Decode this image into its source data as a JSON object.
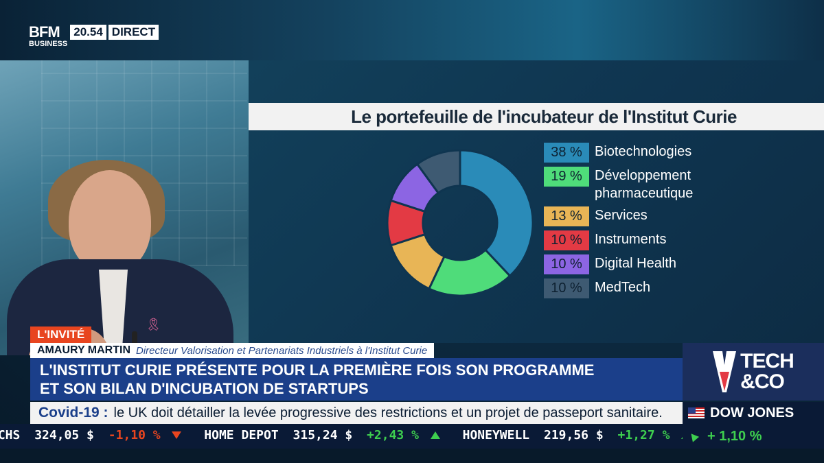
{
  "broadcast": {
    "logo_line1": "BFM",
    "logo_line2": "BUSINESS",
    "time": "20.54",
    "live": "DIRECT"
  },
  "chart_data": {
    "type": "pie",
    "style": "donut",
    "title": "Le portefeuille de l'incubateur de l'Institut Curie",
    "categories": [
      "Biotechnologies",
      "Développement pharmaceutique",
      "Services",
      "Instruments",
      "Digital Health",
      "MedTech"
    ],
    "values": [
      38,
      19,
      13,
      10,
      10,
      10
    ],
    "value_labels": [
      "38 %",
      "19 %",
      "13 %",
      "10 %",
      "10 %",
      "10 %"
    ],
    "colors": [
      "#2a8bb8",
      "#4fdc7a",
      "#e8b556",
      "#e33a44",
      "#8c65e3",
      "#3e5a72"
    ],
    "legend_position": "right"
  },
  "lower_third": {
    "tag": "L'INVITÉ",
    "guest_name": "AMAURY MARTIN",
    "guest_role": "Directeur Valorisation et Partenariats Industriels à l'Institut Curie",
    "headline_line1": "L'INSTITUT CURIE PRÉSENTE POUR LA PREMIÈRE FOIS SON PROGRAMME",
    "headline_line2": "ET SON BILAN D'INCUBATION DE STARTUPS",
    "show_logo_line1": "TECH",
    "show_logo_line2": "&CO"
  },
  "news_crawl": {
    "keyword": "Covid-19 :",
    "text": "le UK doit détailler la levée progressive des restrictions et un projet de passeport sanitaire."
  },
  "index_box": {
    "name": "DOW JONES",
    "change": "+ 1,10 %"
  },
  "ticker": [
    {
      "name": "ACHS",
      "value": "324,05 $",
      "change": "-1,10 %",
      "dir": "down"
    },
    {
      "name": "HOME DEPOT",
      "value": "315,24 $",
      "change": "+2,43 %",
      "dir": "up"
    },
    {
      "name": "HONEYWELL",
      "value": "219,56 $",
      "change": "+1,27 %",
      "dir": "up"
    }
  ],
  "colors": {
    "accent_orange": "#e8451f",
    "headline_blue": "#1b3f8a",
    "positive_green": "#3ecf4f"
  }
}
